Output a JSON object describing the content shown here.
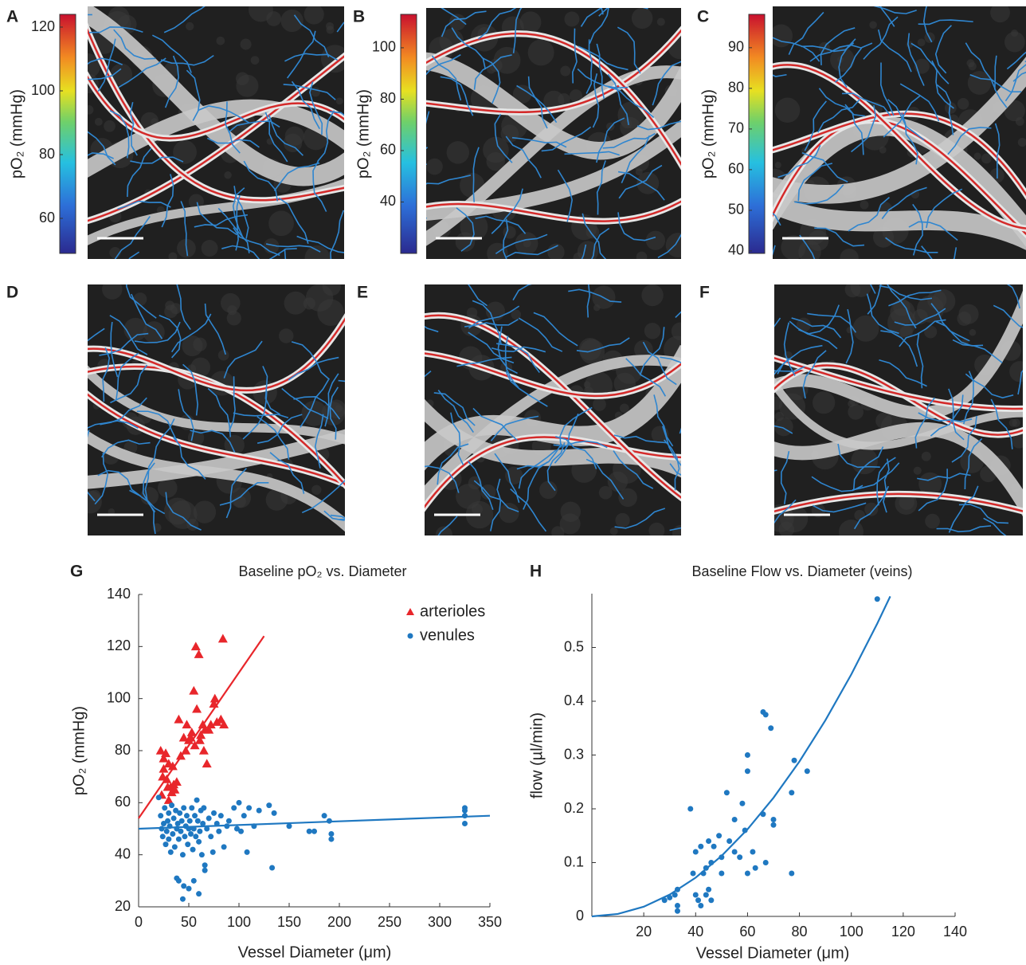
{
  "chart_data": [
    {
      "type": "colorbar",
      "label": "A",
      "ylabel": "pO₂ (mmHg)",
      "ylim": [
        49,
        124
      ],
      "yticks": [
        60,
        80,
        100,
        120
      ]
    },
    {
      "type": "colorbar",
      "label": "B",
      "ylabel": "pO₂ (mmHg)",
      "ylim": [
        20,
        113
      ],
      "yticks": [
        40,
        60,
        80,
        100
      ]
    },
    {
      "type": "colorbar",
      "label": "C",
      "ylabel": "pO₂ (mmHg)",
      "ylim": [
        39.4,
        98.2
      ],
      "yticks": [
        40,
        50,
        60,
        70,
        80,
        90
      ]
    },
    {
      "type": "image",
      "label": "D"
    },
    {
      "type": "image",
      "label": "E"
    },
    {
      "type": "image",
      "label": "F"
    },
    {
      "type": "scatter",
      "label": "G",
      "title": "Baseline pO₂ vs. Diameter",
      "xlabel": "Vessel Diameter (μm)",
      "ylabel": "pO₂ (mmHg)",
      "xlim": [
        0,
        350
      ],
      "xticks": [
        0,
        50,
        100,
        150,
        200,
        250,
        300,
        350
      ],
      "ylim": [
        20,
        140
      ],
      "yticks": [
        20,
        40,
        60,
        80,
        100,
        120,
        140
      ],
      "legend": "upper right",
      "series": [
        {
          "name": "arterioles",
          "color": "#e8262b",
          "marker": "triangle",
          "x": [
            22,
            23,
            24,
            25,
            25,
            27,
            28,
            29,
            30,
            30,
            32,
            33,
            34,
            35,
            36,
            38,
            40,
            42,
            45,
            47,
            48,
            50,
            52,
            53,
            55,
            56,
            57,
            58,
            60,
            61,
            62,
            64,
            65,
            66,
            68,
            70,
            72,
            75,
            76,
            78,
            82,
            84,
            85
          ],
          "values": [
            80,
            63,
            70,
            77,
            73,
            79,
            69,
            66,
            61,
            75,
            66,
            64,
            74,
            67,
            65,
            68,
            92,
            78,
            85,
            80,
            90,
            84,
            85,
            87,
            103,
            82,
            120,
            96,
            117,
            84,
            86,
            90,
            80,
            88,
            75,
            88,
            90,
            98,
            100,
            91,
            92,
            123,
            90
          ]
        },
        {
          "name": "venules",
          "color": "#1f78c1",
          "marker": "circle",
          "x": [
            20,
            22,
            23,
            24,
            25,
            26,
            27,
            28,
            29,
            30,
            30,
            31,
            32,
            33,
            34,
            35,
            36,
            37,
            38,
            38,
            39,
            40,
            40,
            41,
            42,
            43,
            44,
            45,
            45,
            46,
            47,
            48,
            49,
            50,
            50,
            51,
            52,
            53,
            54,
            55,
            56,
            57,
            58,
            59,
            60,
            61,
            62,
            63,
            64,
            65,
            66,
            68,
            70,
            72,
            74,
            75,
            78,
            80,
            82,
            85,
            88,
            90,
            95,
            98,
            100,
            102,
            105,
            108,
            110,
            115,
            120,
            130,
            133,
            135,
            150,
            170,
            175,
            185,
            190,
            192,
            192,
            325,
            325,
            325,
            325,
            60,
            44,
            55,
            66
          ],
          "values": [
            62,
            55,
            50,
            47,
            52,
            58,
            44,
            49,
            53,
            56,
            46,
            51,
            41,
            59,
            48,
            54,
            43,
            57,
            50,
            31,
            52,
            46,
            30,
            56,
            49,
            53,
            40,
            58,
            28,
            47,
            51,
            55,
            44,
            50,
            27,
            53,
            48,
            58,
            42,
            50,
            55,
            47,
            61,
            53,
            45,
            49,
            57,
            40,
            52,
            58,
            36,
            50,
            54,
            47,
            41,
            56,
            52,
            49,
            55,
            43,
            51,
            53,
            58,
            50,
            60,
            49,
            55,
            41,
            58,
            51,
            57,
            59,
            35,
            56,
            51,
            49,
            49,
            55,
            53,
            48,
            46,
            58,
            55,
            52,
            57,
            25,
            23,
            30,
            34
          ]
        }
      ],
      "fits": [
        {
          "color": "#e8262b",
          "x": [
            0,
            125
          ],
          "values": [
            54,
            124
          ]
        },
        {
          "color": "#1f78c1",
          "x": [
            0,
            350
          ],
          "values": [
            50,
            55
          ]
        }
      ]
    },
    {
      "type": "scatter",
      "label": "H",
      "title": "Baseline Flow vs. Diameter (veins)",
      "xlabel": "Vessel Diameter (μm)",
      "ylabel": "flow (µl/min)",
      "xlim": [
        0,
        140
      ],
      "xticks": [
        20,
        40,
        60,
        80,
        100,
        120,
        140
      ],
      "ylim": [
        0,
        0.6
      ],
      "yticks": [
        0,
        0.1,
        0.2,
        0.3,
        0.4,
        0.5
      ],
      "series": [
        {
          "color": "#1f78c1",
          "marker": "circle",
          "x": [
            28,
            30,
            32,
            33,
            33,
            33,
            38,
            39,
            40,
            40,
            41,
            42,
            42,
            43,
            44,
            44,
            45,
            45,
            46,
            46,
            47,
            49,
            50,
            50,
            52,
            53,
            55,
            55,
            57,
            58,
            59,
            60,
            60,
            60,
            62,
            63,
            66,
            66,
            67,
            67,
            69,
            70,
            70,
            77,
            77,
            78,
            83,
            110
          ],
          "values": [
            0.03,
            0.035,
            0.04,
            0.02,
            0.01,
            0.05,
            0.2,
            0.08,
            0.12,
            0.04,
            0.03,
            0.13,
            0.02,
            0.08,
            0.04,
            0.09,
            0.05,
            0.14,
            0.1,
            0.03,
            0.13,
            0.15,
            0.08,
            0.11,
            0.23,
            0.14,
            0.12,
            0.18,
            0.11,
            0.21,
            0.16,
            0.08,
            0.3,
            0.27,
            0.12,
            0.09,
            0.19,
            0.38,
            0.1,
            0.375,
            0.35,
            0.18,
            0.17,
            0.23,
            0.08,
            0.29,
            0.27,
            0.59
          ]
        }
      ],
      "fits": [
        {
          "color": "#1f78c1",
          "x": [
            0,
            10,
            20,
            30,
            40,
            50,
            60,
            70,
            80,
            90,
            100,
            110,
            115
          ],
          "values": [
            0,
            0.0045,
            0.018,
            0.0405,
            0.072,
            0.1125,
            0.162,
            0.2205,
            0.288,
            0.3645,
            0.45,
            0.5445,
            0.595
          ]
        }
      ]
    }
  ]
}
